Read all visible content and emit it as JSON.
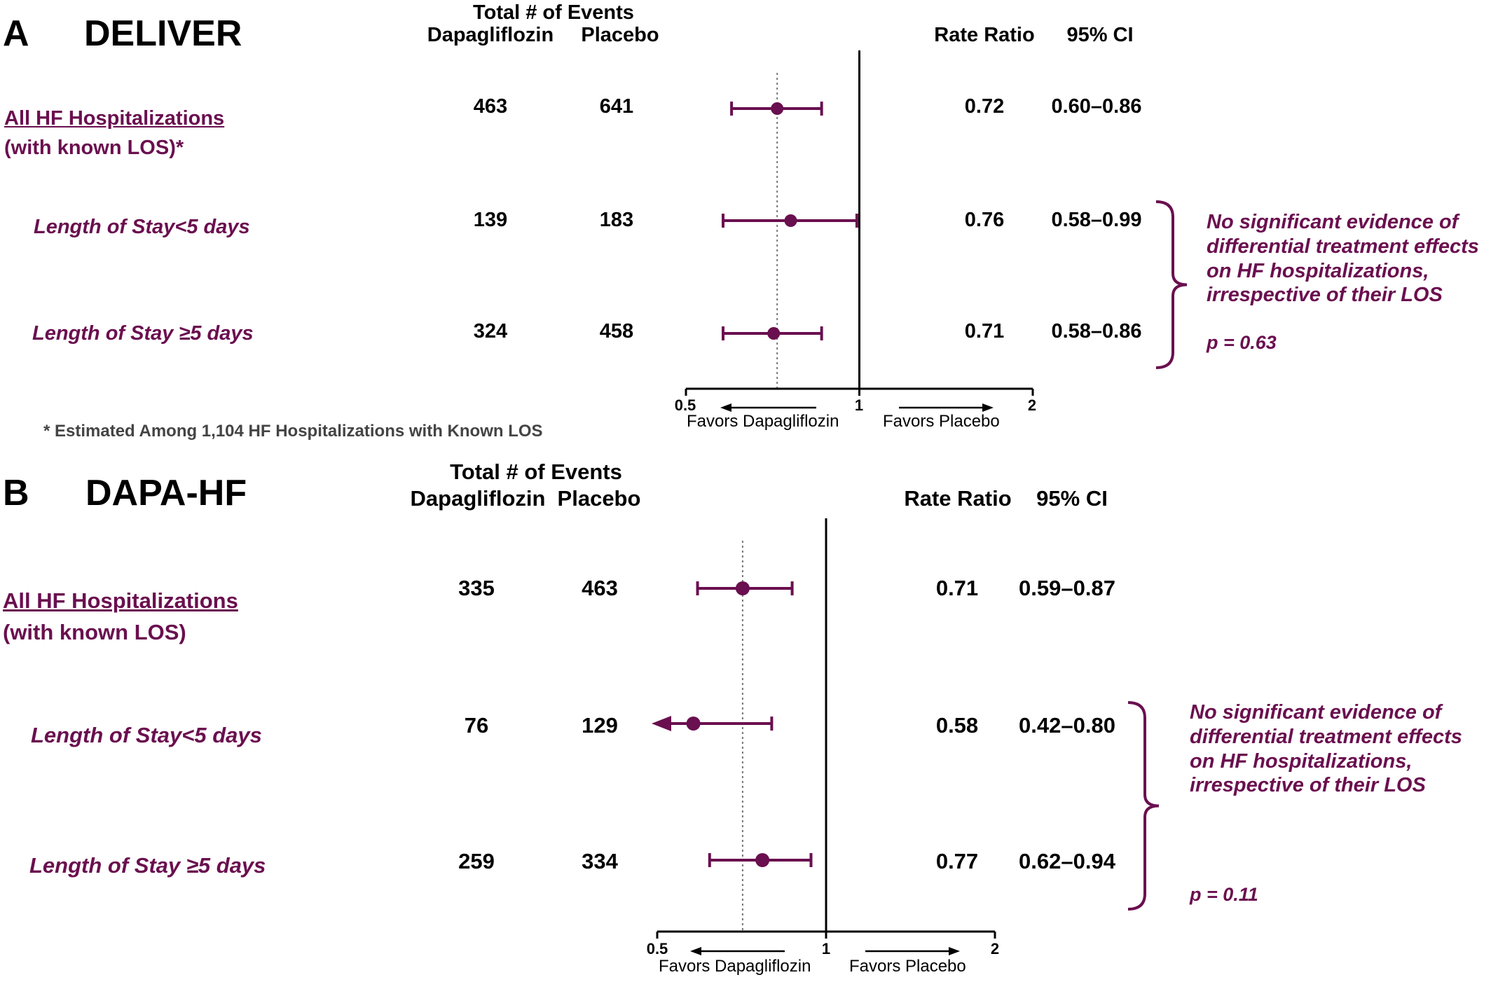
{
  "colors": {
    "accent": "#6a0f4f",
    "line": "#000000",
    "note": "#444444"
  },
  "chart_data": [
    {
      "type": "forest",
      "panel_letter": "A",
      "trial": "DELIVER",
      "header": {
        "group": "Total # of Events",
        "col1": "Dapagliflozin",
        "col2": "Placebo",
        "ratio": "Rate Ratio",
        "ci": "95% CI"
      },
      "rows": [
        {
          "label": "All HF Hospitalizations",
          "label2": "(with known LOS)*",
          "kind": "main",
          "dapa": "463",
          "placebo": "641",
          "ratio_text": "0.72",
          "ci_text": "0.60–0.86",
          "ratio": 0.72,
          "lo": 0.6,
          "hi": 0.86
        },
        {
          "label": "Length of Stay<5 days",
          "kind": "sub",
          "dapa": "139",
          "placebo": "183",
          "ratio_text": "0.76",
          "ci_text": "0.58–0.99",
          "ratio": 0.76,
          "lo": 0.58,
          "hi": 0.99
        },
        {
          "label": "Length of Stay ≥5 days",
          "kind": "sub",
          "dapa": "324",
          "placebo": "458",
          "ratio_text": "0.71",
          "ci_text": "0.58–0.86",
          "ratio": 0.71,
          "lo": 0.58,
          "hi": 0.86
        }
      ],
      "reference_lines": [
        1,
        0.72
      ],
      "xlim": [
        0.5,
        2
      ],
      "ticks": [
        {
          "value": 0.5,
          "label": "0.5"
        },
        {
          "value": 1,
          "label": "1"
        },
        {
          "value": 2,
          "label": "2"
        }
      ],
      "favors_left": "Favors Dapagliflozin",
      "favors_right": "Favors Placebo",
      "annotation": "No significant evidence of differential treatment effects on HF hospitalizations, irrespective of their LOS",
      "p_value": "p = 0.63",
      "footnote": "* Estimated Among 1,104 HF Hospitalizations with Known LOS"
    },
    {
      "type": "forest",
      "panel_letter": "B",
      "trial": "DAPA-HF",
      "header": {
        "group": "Total # of Events",
        "col1": "Dapagliflozin",
        "col2": "Placebo",
        "ratio": "Rate Ratio",
        "ci": "95% CI"
      },
      "rows": [
        {
          "label": "All HF Hospitalizations",
          "label2": "(with known LOS)",
          "kind": "main",
          "dapa": "335",
          "placebo": "463",
          "ratio_text": "0.71",
          "ci_text": "0.59–0.87",
          "ratio": 0.71,
          "lo": 0.59,
          "hi": 0.87
        },
        {
          "label": "Length of Stay<5 days",
          "kind": "sub",
          "dapa": "76",
          "placebo": "129",
          "ratio_text": "0.58",
          "ci_text": "0.42–0.80",
          "ratio": 0.58,
          "lo": 0.42,
          "hi": 0.8
        },
        {
          "label": "Length of Stay ≥5 days",
          "kind": "sub",
          "dapa": "259",
          "placebo": "334",
          "ratio_text": "0.77",
          "ci_text": "0.62–0.94",
          "ratio": 0.77,
          "lo": 0.62,
          "hi": 0.94
        }
      ],
      "reference_lines": [
        1,
        0.71
      ],
      "xlim": [
        0.5,
        2
      ],
      "ticks": [
        {
          "value": 0.5,
          "label": "0.5"
        },
        {
          "value": 1,
          "label": "1"
        },
        {
          "value": 2,
          "label": "2"
        }
      ],
      "favors_left": "Favors Dapagliflozin",
      "favors_right": "Favors Placebo",
      "annotation": "No significant evidence of differential treatment effects on HF hospitalizations, irrespective of their LOS",
      "p_value": "p = 0.11"
    }
  ]
}
